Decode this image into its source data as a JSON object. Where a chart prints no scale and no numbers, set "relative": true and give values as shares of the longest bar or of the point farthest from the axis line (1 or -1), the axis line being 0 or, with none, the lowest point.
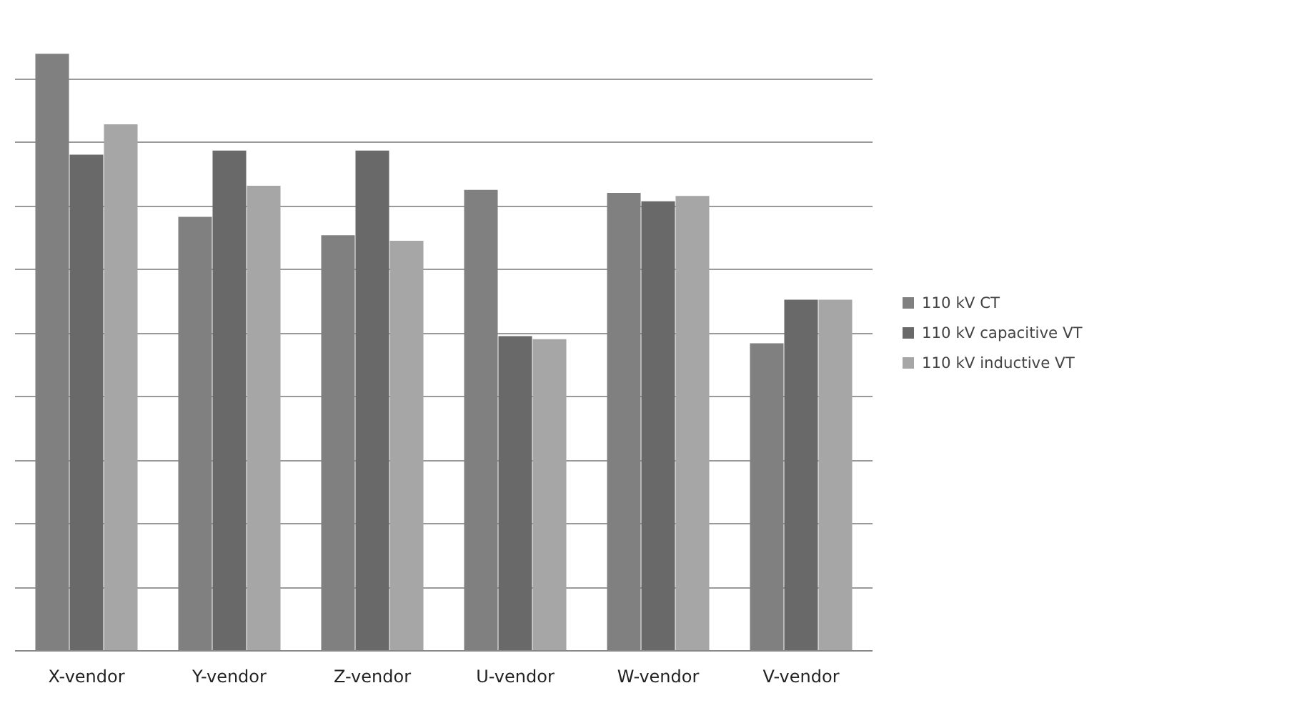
{
  "chart_data": {
    "type": "bar",
    "relative": true,
    "categories": [
      "X-vendor",
      "Y-vendor",
      "Z-vendor",
      "U-vendor",
      "W-vendor",
      "V-vendor"
    ],
    "series": [
      {
        "name": "110 kV CT",
        "color": "#808080",
        "values": [
          1,
          0.727,
          0.696,
          0.772,
          0.767,
          0.515
        ]
      },
      {
        "name": "110 kV capacitive VT",
        "color": "#696969",
        "values": [
          0.831,
          0.838,
          0.838,
          0.527,
          0.753,
          0.588
        ]
      },
      {
        "name": "110 kV inductive VT",
        "color": "#a6a6a6",
        "values": [
          0.882,
          0.779,
          0.687,
          0.522,
          0.762,
          0.588
        ]
      }
    ],
    "grid": "y",
    "legend": "right"
  }
}
